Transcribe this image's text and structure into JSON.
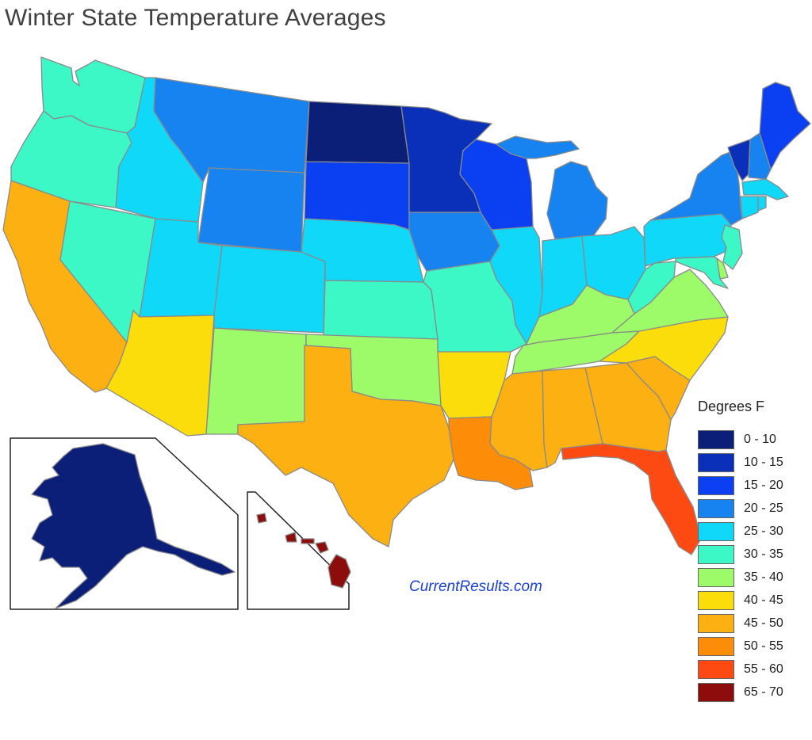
{
  "title": "Winter State Temperature Averages",
  "watermark": "CurrentResults.com",
  "legend": {
    "title": "Degrees F",
    "bins": [
      {
        "label": "0 - 10",
        "color": "#0b1f78"
      },
      {
        "label": "10 - 15",
        "color": "#0a2fb8"
      },
      {
        "label": "15 - 20",
        "color": "#0b3ff2"
      },
      {
        "label": "20 - 25",
        "color": "#1683f0"
      },
      {
        "label": "25 - 30",
        "color": "#10d8f8"
      },
      {
        "label": "30 - 35",
        "color": "#3cf7c6"
      },
      {
        "label": "35 - 40",
        "color": "#9dfa68"
      },
      {
        "label": "40 - 45",
        "color": "#fbdd0c"
      },
      {
        "label": "45 - 50",
        "color": "#fcb012"
      },
      {
        "label": "50 - 55",
        "color": "#fd8c08"
      },
      {
        "label": "55 - 60",
        "color": "#fd4a12"
      },
      {
        "label": "65 - 70",
        "color": "#8d0c0c"
      }
    ]
  },
  "states": [
    {
      "id": "WA",
      "bin": "30 - 35"
    },
    {
      "id": "OR",
      "bin": "30 - 35"
    },
    {
      "id": "CA",
      "bin": "45 - 50"
    },
    {
      "id": "NV",
      "bin": "30 - 35"
    },
    {
      "id": "ID",
      "bin": "25 - 30"
    },
    {
      "id": "MT",
      "bin": "20 - 25"
    },
    {
      "id": "WY",
      "bin": "20 - 25"
    },
    {
      "id": "UT",
      "bin": "25 - 30"
    },
    {
      "id": "AZ",
      "bin": "40 - 45"
    },
    {
      "id": "CO",
      "bin": "25 - 30"
    },
    {
      "id": "NM",
      "bin": "35 - 40"
    },
    {
      "id": "ND",
      "bin": "0 - 10"
    },
    {
      "id": "SD",
      "bin": "15 - 20"
    },
    {
      "id": "NE",
      "bin": "25 - 30"
    },
    {
      "id": "KS",
      "bin": "30 - 35"
    },
    {
      "id": "OK",
      "bin": "35 - 40"
    },
    {
      "id": "TX",
      "bin": "45 - 50"
    },
    {
      "id": "MN",
      "bin": "10 - 15"
    },
    {
      "id": "IA",
      "bin": "20 - 25"
    },
    {
      "id": "MO",
      "bin": "30 - 35"
    },
    {
      "id": "AR",
      "bin": "40 - 45"
    },
    {
      "id": "LA",
      "bin": "50 - 55"
    },
    {
      "id": "WI",
      "bin": "15 - 20"
    },
    {
      "id": "IL",
      "bin": "25 - 30"
    },
    {
      "id": "MI",
      "bin": "20 - 25"
    },
    {
      "id": "IN",
      "bin": "25 - 30"
    },
    {
      "id": "OH",
      "bin": "25 - 30"
    },
    {
      "id": "KY",
      "bin": "35 - 40"
    },
    {
      "id": "TN",
      "bin": "35 - 40"
    },
    {
      "id": "MS",
      "bin": "45 - 50"
    },
    {
      "id": "AL",
      "bin": "45 - 50"
    },
    {
      "id": "GA",
      "bin": "45 - 50"
    },
    {
      "id": "FL",
      "bin": "55 - 60"
    },
    {
      "id": "SC",
      "bin": "45 - 50"
    },
    {
      "id": "NC",
      "bin": "40 - 45"
    },
    {
      "id": "VA",
      "bin": "35 - 40"
    },
    {
      "id": "WV",
      "bin": "30 - 35"
    },
    {
      "id": "PA",
      "bin": "25 - 30"
    },
    {
      "id": "NY",
      "bin": "20 - 25"
    },
    {
      "id": "VT",
      "bin": "10 - 15"
    },
    {
      "id": "NH",
      "bin": "20 - 25"
    },
    {
      "id": "ME",
      "bin": "15 - 20"
    },
    {
      "id": "MA",
      "bin": "25 - 30"
    },
    {
      "id": "CT",
      "bin": "25 - 30"
    },
    {
      "id": "RI",
      "bin": "25 - 30"
    },
    {
      "id": "NJ",
      "bin": "30 - 35"
    },
    {
      "id": "DE",
      "bin": "35 - 40"
    },
    {
      "id": "MD",
      "bin": "30 - 35"
    },
    {
      "id": "AK",
      "bin": "0 - 10"
    },
    {
      "id": "HI",
      "bin": "65 - 70"
    }
  ]
}
